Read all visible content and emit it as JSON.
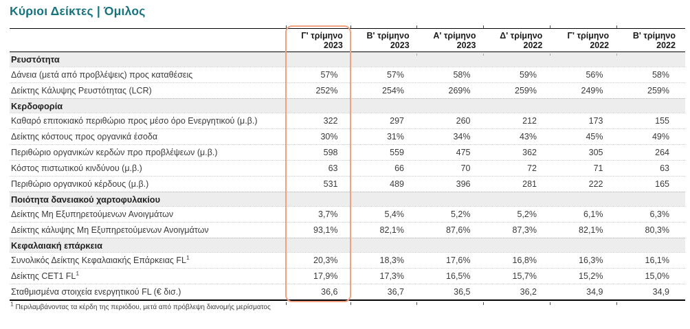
{
  "title": "Κύριοι Δείκτες | Όμιλος",
  "colors": {
    "title_teal": "#17737E",
    "highlight_orange": "#F2A17F",
    "section_row_bg": "#EDEDED",
    "body_text": "#3A3A3A",
    "rule_black": "#000000"
  },
  "table": {
    "columns": [
      {
        "quarter": "Γ' τρίμηνο",
        "year": "2023"
      },
      {
        "quarter": "Β' τρίμηνο",
        "year": "2023"
      },
      {
        "quarter": "Α' τρίμηνο",
        "year": "2023"
      },
      {
        "quarter": "Δ' τρίμηνο",
        "year": "2022"
      },
      {
        "quarter": "Γ' τρίμηνο",
        "year": "2022"
      },
      {
        "quarter": "Β' τρίμηνο",
        "year": "2022"
      }
    ],
    "highlighted_column_index": 0,
    "sections": [
      {
        "header": "Ρευστότητα",
        "rows": [
          {
            "label": "Δάνεια (μετά από προβλέψεις) προς καταθέσεις",
            "values": [
              "57%",
              "57%",
              "58%",
              "59%",
              "56%",
              "58%"
            ]
          },
          {
            "label": "Δείκτης Κάλυψης Ρευστότητας (LCR)",
            "values": [
              "252%",
              "254%",
              "269%",
              "259%",
              "249%",
              "259%"
            ]
          }
        ]
      },
      {
        "header": "Κερδοφορία",
        "rows": [
          {
            "label": "Καθαρό επιτοκιακό περιθώριο προς μέσο όρο Ενεργητικού (μ.β.)",
            "values": [
              "322",
              "297",
              "260",
              "212",
              "173",
              "155"
            ]
          },
          {
            "label": "Δείκτης κόστους προς οργανικά έσοδα",
            "values": [
              "30%",
              "31%",
              "34%",
              "43%",
              "45%",
              "49%"
            ]
          },
          {
            "label": "Περιθώριο οργανικών κερδών προ προβλέψεων (μ.β.)",
            "values": [
              "598",
              "559",
              "475",
              "362",
              "305",
              "264"
            ]
          },
          {
            "label": "Κόστος πιστωτικού κινδύνου (μ.β.)",
            "values": [
              "63",
              "66",
              "70",
              "72",
              "71",
              "63"
            ]
          },
          {
            "label": "Περιθώριο οργανικού κέρδους (μ.β.)",
            "values": [
              "531",
              "489",
              "396",
              "281",
              "222",
              "165"
            ]
          }
        ]
      },
      {
        "header": "Ποιότητα δανειακού χαρτοφυλακίου",
        "rows": [
          {
            "label": "Δείκτης Μη Εξυπηρετούμενων Ανοιγμάτων",
            "values": [
              "3,7%",
              "5,4%",
              "5,2%",
              "5,2%",
              "6,1%",
              "6,3%"
            ]
          },
          {
            "label": "Δείκτης κάλυψης Μη Εξυπηρετούμενων Ανοιγμάτων",
            "values": [
              "93,1%",
              "82,1%",
              "87,6%",
              "87,3%",
              "82,1%",
              "80,3%"
            ]
          }
        ]
      },
      {
        "header": "Κεφαλαιακή επάρκεια",
        "rows": [
          {
            "label": "Συνολικός Δείκτης Κεφαλαιακής Επάρκειας FL",
            "sup": "1",
            "values": [
              "20,3%",
              "18,3%",
              "17,6%",
              "16,8%",
              "16,3%",
              "16,1%"
            ]
          },
          {
            "label": "Δείκτης CET1 FL",
            "sup": "1",
            "values": [
              "17,9%",
              "17,3%",
              "16,5%",
              "15,7%",
              "15,2%",
              "15,0%"
            ]
          },
          {
            "label": "Σταθμισμένα στοιχεία ενεργητικού FL (€ δισ.)",
            "values": [
              "36,6",
              "36,7",
              "36,5",
              "36,2",
              "34,9",
              "34,9"
            ]
          }
        ]
      }
    ],
    "footnote": {
      "marker": "1",
      "text": "Περιλαμβάνοντας τα κέρδη της περιόδου, μετά από πρόβλεψη διανομής μερίσματος"
    }
  }
}
